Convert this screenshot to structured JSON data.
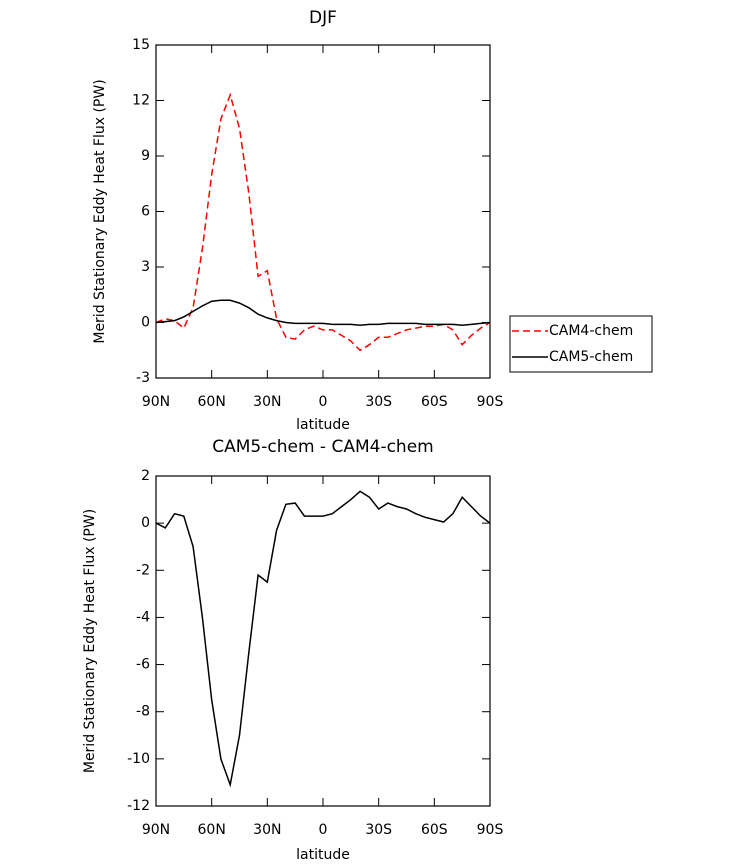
{
  "chart_data": [
    {
      "type": "line",
      "title": "DJF",
      "xlabel": "latitude",
      "ylabel": "Merid Stationary Eddy Heat Flux (PW)",
      "x": [
        90,
        85,
        80,
        75,
        70,
        65,
        60,
        55,
        50,
        45,
        40,
        35,
        30,
        25,
        20,
        15,
        10,
        5,
        0,
        -5,
        -10,
        -15,
        -20,
        -25,
        -30,
        -35,
        -40,
        -45,
        -50,
        -55,
        -60,
        -65,
        -70,
        -75,
        -80,
        -85,
        -90
      ],
      "series": [
        {
          "name": "CAM4-chem",
          "color": "#ff0000",
          "line_style": "dashed",
          "values": [
            0,
            0.2,
            0.1,
            -0.3,
            0.8,
            4,
            8,
            11,
            12.3,
            10.5,
            7,
            2.5,
            2.8,
            0.2,
            -0.8,
            -0.9,
            -0.4,
            -0.2,
            -0.4,
            -0.4,
            -0.7,
            -1,
            -1.5,
            -1.2,
            -0.8,
            -0.8,
            -0.6,
            -0.4,
            -0.3,
            -0.2,
            -0.2,
            -0.1,
            -0.4,
            -1.2,
            -0.7,
            -0.3,
            0
          ]
        },
        {
          "name": "CAM5-chem",
          "color": "#000000",
          "line_style": "solid",
          "values": [
            0,
            0.05,
            0.1,
            0.3,
            0.6,
            0.9,
            1.15,
            1.2,
            1.2,
            1.05,
            0.8,
            0.45,
            0.25,
            0.1,
            0,
            -0.05,
            -0.05,
            -0.05,
            -0.05,
            -0.1,
            -0.1,
            -0.1,
            -0.15,
            -0.1,
            -0.1,
            -0.05,
            -0.05,
            -0.05,
            -0.05,
            -0.1,
            -0.1,
            -0.1,
            -0.1,
            -0.15,
            -0.1,
            -0.05,
            0
          ]
        }
      ],
      "xlim": [
        90,
        -90
      ],
      "xticks": [
        {
          "value": 90,
          "label": "90N"
        },
        {
          "value": 60,
          "label": "60N"
        },
        {
          "value": 30,
          "label": "30N"
        },
        0,
        {
          "value": -30,
          "label": "30S"
        },
        {
          "value": -60,
          "label": "60S"
        },
        {
          "value": -90,
          "label": "90S"
        }
      ],
      "ylim": [
        -3,
        15
      ],
      "yticks": [
        -3,
        0,
        3,
        6,
        9,
        12,
        15
      ],
      "legend": "right"
    },
    {
      "type": "line",
      "title": "CAM5-chem - CAM4-chem",
      "xlabel": "latitude",
      "ylabel": "Merid Stationary Eddy Heat Flux (PW)",
      "x": [
        90,
        85,
        80,
        75,
        70,
        65,
        60,
        55,
        50,
        45,
        40,
        35,
        30,
        25,
        20,
        15,
        10,
        5,
        0,
        -5,
        -10,
        -15,
        -20,
        -25,
        -30,
        -35,
        -40,
        -45,
        -50,
        -55,
        -60,
        -65,
        -70,
        -75,
        -80,
        -85,
        -90
      ],
      "series": [
        {
          "color": "#000000",
          "line_style": "solid",
          "values": [
            0,
            -0.2,
            0.4,
            0.3,
            -1,
            -4,
            -7.5,
            -10,
            -11.1,
            -9,
            -5.5,
            -2.2,
            -2.5,
            -0.3,
            0.8,
            0.85,
            0.3,
            0.3,
            0.3,
            0.4,
            0.7,
            1,
            1.35,
            1.1,
            0.6,
            0.85,
            0.7,
            0.6,
            0.4,
            0.25,
            0.15,
            0.05,
            0.4,
            1.1,
            0.7,
            0.3,
            0
          ]
        }
      ],
      "xlim": [
        90,
        -90
      ],
      "xticks": [
        {
          "value": 90,
          "label": "90N"
        },
        {
          "value": 60,
          "label": "60N"
        },
        {
          "value": 30,
          "label": "30N"
        },
        0,
        {
          "value": -30,
          "label": "30S"
        },
        {
          "value": -60,
          "label": "60S"
        },
        {
          "value": -90,
          "label": "90S"
        }
      ],
      "ylim": [
        -12,
        2
      ],
      "yticks": [
        -12,
        -10,
        -8,
        -6,
        -4,
        -2,
        0,
        2
      ]
    }
  ]
}
